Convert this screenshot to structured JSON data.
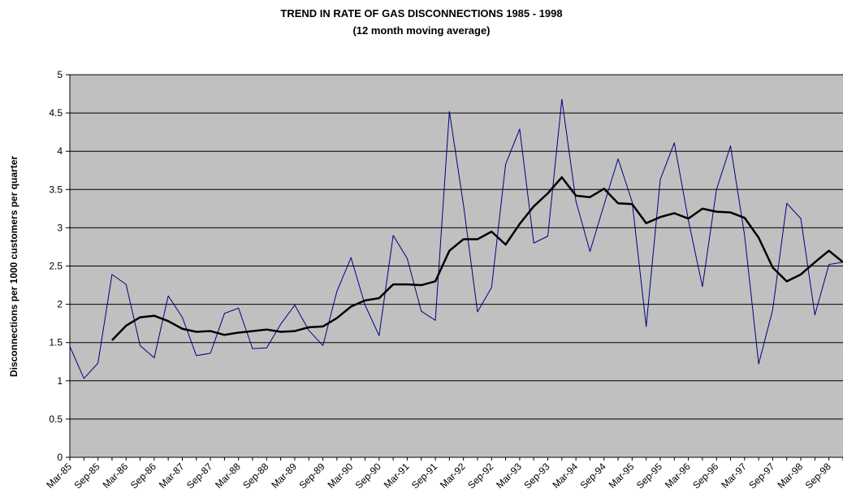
{
  "chart_data": {
    "type": "line",
    "title": "TREND IN RATE OF GAS DISCONNECTIONS 1985 - 1998",
    "subtitle": "(12 month moving average)",
    "y_label": "Disconnections per 1000 customers per quarter",
    "categories": [
      "Mar-85",
      null,
      "Sep-85",
      null,
      "Mar-86",
      null,
      "Sep-86",
      null,
      "Mar-87",
      null,
      "Sep-87",
      null,
      "Mar-88",
      null,
      "Sep-88",
      null,
      "Mar-89",
      null,
      "Sep-89",
      null,
      "Mar-90",
      null,
      "Sep-90",
      null,
      "Mar-91",
      null,
      "Sep-91",
      null,
      "Mar-92",
      null,
      "Sep-92",
      null,
      "Mar-93",
      null,
      "Sep-93",
      null,
      "Mar-94",
      null,
      "Sep-94",
      null,
      "Mar-95",
      null,
      "Sep-95",
      null,
      "Mar-96",
      null,
      "Sep-96",
      null,
      "Mar-97",
      null,
      "Sep-97",
      null,
      "Mar-98",
      null,
      "Sep-98",
      null
    ],
    "series": [
      {
        "color": "#000080",
        "width": 1,
        "values": [
          1.45,
          1.03,
          1.23,
          2.39,
          2.26,
          1.46,
          1.3,
          2.11,
          1.83,
          1.33,
          1.36,
          1.88,
          1.95,
          1.42,
          1.43,
          1.74,
          1.99,
          1.66,
          1.46,
          2.17,
          2.61,
          1.99,
          1.59,
          2.9,
          2.6,
          1.91,
          1.79,
          4.52,
          3.3,
          1.9,
          2.22,
          3.83,
          4.29,
          2.8,
          2.89,
          4.68,
          3.35,
          2.69,
          3.3,
          3.9,
          3.34,
          1.71,
          3.63,
          4.11,
          3.1,
          2.23,
          3.5,
          4.07,
          2.9,
          1.22,
          1.93,
          3.32,
          3.12,
          1.86,
          2.52,
          2.55
        ]
      },
      {
        "color": "#000000",
        "width": 2.5,
        "values": [
          null,
          null,
          null,
          1.53,
          1.72,
          1.83,
          1.85,
          1.78,
          1.68,
          1.64,
          1.65,
          1.6,
          1.63,
          1.65,
          1.67,
          1.64,
          1.65,
          1.7,
          1.71,
          1.82,
          1.97,
          2.05,
          2.08,
          2.26,
          2.26,
          2.25,
          2.3,
          2.7,
          2.85,
          2.85,
          2.95,
          2.78,
          3.05,
          3.28,
          3.45,
          3.66,
          3.42,
          3.4,
          3.51,
          3.32,
          3.31,
          3.06,
          3.14,
          3.19,
          3.12,
          3.25,
          3.21,
          3.2,
          3.13,
          2.87,
          2.48,
          2.3,
          2.39,
          2.55,
          2.7,
          2.55
        ]
      }
    ],
    "ylim": [
      0,
      5
    ],
    "yticks": [
      0,
      0.5,
      1,
      1.5,
      2,
      2.5,
      3,
      3.5,
      4,
      4.5,
      5
    ],
    "grid": true,
    "plot_background": "#c0c0c0"
  }
}
